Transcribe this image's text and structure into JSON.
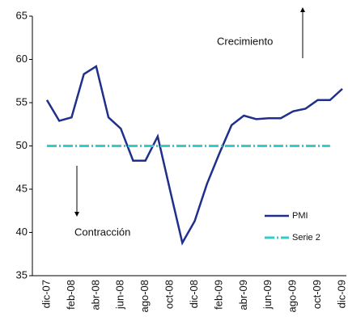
{
  "chart_data": {
    "type": "line",
    "categories": [
      "dic-07",
      null,
      "feb-08",
      null,
      "abr-08",
      null,
      "jun-08",
      null,
      "ago-08",
      null,
      "oct-08",
      null,
      "dic-08",
      null,
      "feb-09",
      null,
      "abr-09",
      null,
      "jun-09",
      null,
      "ago-09",
      null,
      "oct-09",
      null,
      "dic-09"
    ],
    "series": [
      {
        "name": "PMI",
        "color": "#1f2f8c",
        "values": [
          55.3,
          52.9,
          53.3,
          58.3,
          59.2,
          53.3,
          52.0,
          48.3,
          48.3,
          51.1,
          44.9,
          38.8,
          41.3,
          45.6,
          49.1,
          52.4,
          53.5,
          53.1,
          53.2,
          53.2,
          54.0,
          54.3,
          55.3,
          55.3,
          56.6
        ]
      },
      {
        "name": "Serie 2",
        "color": "#33cccc",
        "values": [
          50,
          50,
          50,
          50,
          50,
          50,
          50,
          50,
          50,
          50,
          50,
          50,
          50,
          50,
          50,
          50,
          50,
          50,
          50,
          50,
          50,
          50,
          50,
          50,
          null
        ]
      }
    ],
    "ylim": [
      35,
      65
    ],
    "yticks": [
      35,
      40,
      45,
      50,
      55,
      60,
      65
    ],
    "grid": false,
    "legend": "lower right",
    "annotations": [
      "Crecimiento",
      "Contracción"
    ]
  }
}
